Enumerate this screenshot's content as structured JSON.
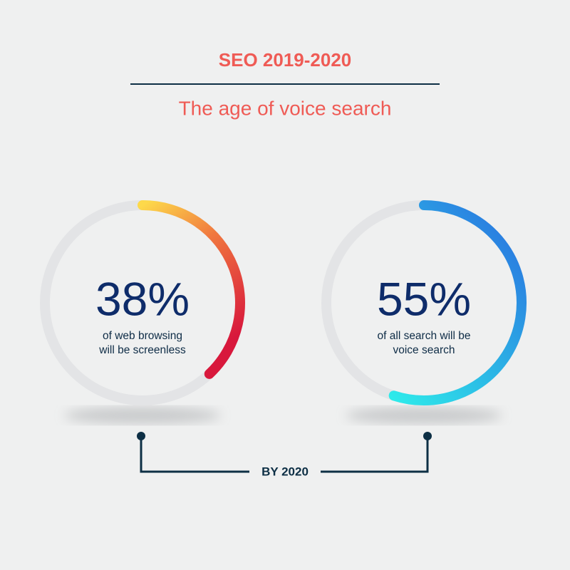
{
  "header": {
    "title": "SEO 2019-2020",
    "subtitle": "The age of voice search"
  },
  "stats": [
    {
      "value": 38,
      "value_label": "38%",
      "caption": [
        "of web browsing",
        "will be screenless"
      ]
    },
    {
      "value": 55,
      "value_label": "55%",
      "caption": [
        "of all search will be",
        "voice search"
      ]
    }
  ],
  "footer": {
    "label": "BY 2020"
  }
}
